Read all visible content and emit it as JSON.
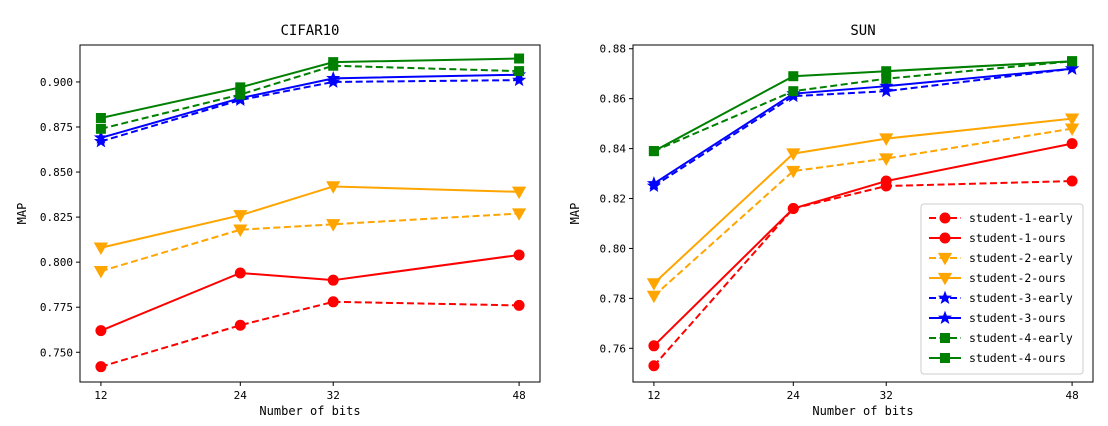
{
  "chart_data": [
    {
      "type": "line",
      "title": "CIFAR10",
      "xlabel": "Number of bits",
      "ylabel": "MAP",
      "x": [
        12,
        24,
        32,
        48
      ],
      "xlim": [
        10.2,
        49.8
      ],
      "ylim": [
        0.7335,
        0.9205
      ],
      "yticks": [
        0.75,
        0.775,
        0.8,
        0.825,
        0.85,
        0.875,
        0.9
      ],
      "ytick_labels": [
        "0.750",
        "0.775",
        "0.800",
        "0.825",
        "0.850",
        "0.875",
        "0.900"
      ],
      "grid": false,
      "legend": null,
      "series": [
        {
          "name": "student-1-early",
          "color": "#ff0000",
          "dash": "dashed",
          "marker": "circle",
          "values": [
            0.742,
            0.765,
            0.778,
            0.776
          ]
        },
        {
          "name": "student-1-ours",
          "color": "#ff0000",
          "dash": "solid",
          "marker": "circle",
          "values": [
            0.762,
            0.794,
            0.79,
            0.804
          ]
        },
        {
          "name": "student-2-early",
          "color": "#ffa500",
          "dash": "dashed",
          "marker": "triangle-down",
          "values": [
            0.795,
            0.818,
            0.821,
            0.827
          ]
        },
        {
          "name": "student-2-ours",
          "color": "#ffa500",
          "dash": "solid",
          "marker": "triangle-down",
          "values": [
            0.808,
            0.826,
            0.842,
            0.839
          ]
        },
        {
          "name": "student-3-early",
          "color": "#0000ff",
          "dash": "dashed",
          "marker": "star",
          "values": [
            0.867,
            0.89,
            0.9,
            0.901
          ]
        },
        {
          "name": "student-3-ours",
          "color": "#0000ff",
          "dash": "solid",
          "marker": "star",
          "values": [
            0.869,
            0.891,
            0.902,
            0.904
          ]
        },
        {
          "name": "student-4-early",
          "color": "#008000",
          "dash": "dashed",
          "marker": "square",
          "values": [
            0.874,
            0.893,
            0.909,
            0.906
          ]
        },
        {
          "name": "student-4-ours",
          "color": "#008000",
          "dash": "solid",
          "marker": "square",
          "values": [
            0.88,
            0.897,
            0.911,
            0.913
          ]
        }
      ]
    },
    {
      "type": "line",
      "title": "SUN",
      "xlabel": "Number of bits",
      "ylabel": "MAP",
      "x": [
        12,
        24,
        32,
        48
      ],
      "xlim": [
        10.2,
        49.8
      ],
      "ylim": [
        0.7465,
        0.8815
      ],
      "yticks": [
        0.76,
        0.78,
        0.8,
        0.82,
        0.84,
        0.86,
        0.88
      ],
      "ytick_labels": [
        "0.76",
        "0.78",
        "0.80",
        "0.82",
        "0.84",
        "0.86",
        "0.88"
      ],
      "grid": false,
      "legend": "lower-right",
      "series": [
        {
          "name": "student-1-early",
          "color": "#ff0000",
          "dash": "dashed",
          "marker": "circle",
          "values": [
            0.753,
            0.816,
            0.825,
            0.827
          ]
        },
        {
          "name": "student-1-ours",
          "color": "#ff0000",
          "dash": "solid",
          "marker": "circle",
          "values": [
            0.761,
            0.816,
            0.827,
            0.842
          ]
        },
        {
          "name": "student-2-early",
          "color": "#ffa500",
          "dash": "dashed",
          "marker": "triangle-down",
          "values": [
            0.781,
            0.831,
            0.836,
            0.848
          ]
        },
        {
          "name": "student-2-ours",
          "color": "#ffa500",
          "dash": "solid",
          "marker": "triangle-down",
          "values": [
            0.786,
            0.838,
            0.844,
            0.852
          ]
        },
        {
          "name": "student-3-early",
          "color": "#0000ff",
          "dash": "dashed",
          "marker": "star",
          "values": [
            0.825,
            0.861,
            0.863,
            0.872
          ]
        },
        {
          "name": "student-3-ours",
          "color": "#0000ff",
          "dash": "solid",
          "marker": "star",
          "values": [
            0.826,
            0.862,
            0.865,
            0.872
          ]
        },
        {
          "name": "student-4-early",
          "color": "#008000",
          "dash": "dashed",
          "marker": "square",
          "values": [
            0.839,
            0.863,
            0.868,
            0.875
          ]
        },
        {
          "name": "student-4-ours",
          "color": "#008000",
          "dash": "solid",
          "marker": "square",
          "values": [
            0.839,
            0.869,
            0.871,
            0.875
          ]
        }
      ]
    }
  ]
}
